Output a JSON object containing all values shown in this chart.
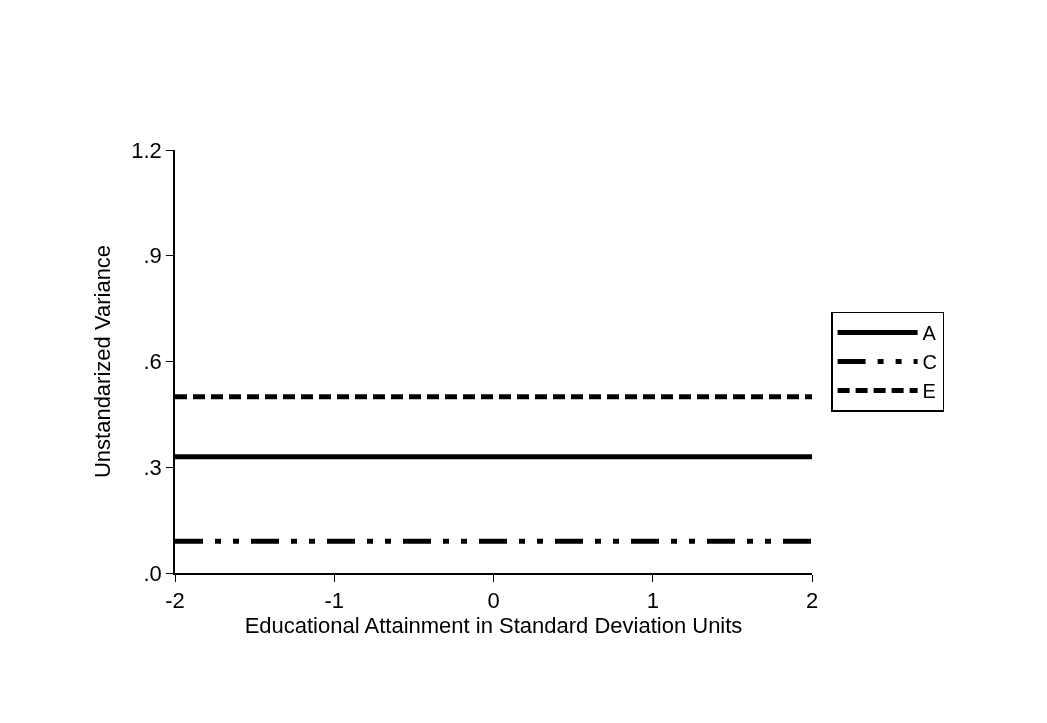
{
  "chart_data": {
    "type": "line",
    "xlabel": "Educational Attainment in Standard Deviation Units",
    "ylabel": "Unstandarized Variance",
    "x": [
      -2,
      2
    ],
    "series": [
      {
        "name": "A",
        "color": "#000000",
        "values": [
          0.33,
          0.33
        ],
        "line_style": "solid"
      },
      {
        "name": "C",
        "color": "#000000",
        "values": [
          0.09,
          0.09
        ],
        "line_style": "dashdotdot"
      },
      {
        "name": "E",
        "color": "#000000",
        "values": [
          0.5,
          0.5
        ],
        "line_style": "dashed"
      }
    ],
    "xlim": [
      -2,
      2
    ],
    "xticks": [
      -2,
      -1,
      0,
      1,
      2
    ],
    "ylim": [
      0,
      1.2
    ],
    "yticks": [
      {
        "value": 0,
        "label": ".0"
      },
      {
        "value": 0.3,
        "label": ".3"
      },
      {
        "value": 0.6,
        "label": ".6"
      },
      {
        "value": 0.9,
        "label": ".9"
      },
      {
        "value": 1.2,
        "label": "1.2"
      }
    ],
    "legend": "right",
    "marker": "none"
  }
}
